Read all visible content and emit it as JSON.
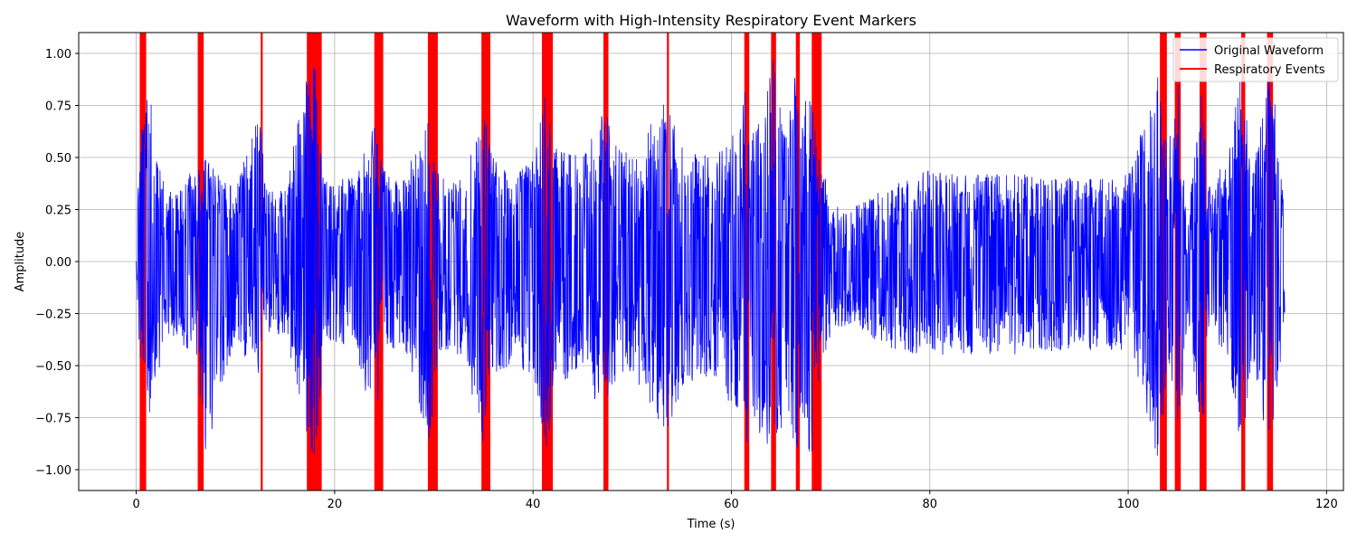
{
  "chart_data": {
    "type": "line",
    "title": "Waveform with High-Intensity Respiratory Event Markers",
    "xlabel": "Time (s)",
    "ylabel": "Amplitude",
    "xlim": [
      -5.8,
      121.7
    ],
    "ylim": [
      -1.1,
      1.1
    ],
    "xticks": [
      0,
      20,
      40,
      60,
      80,
      100,
      120
    ],
    "yticks": [
      -1.0,
      -0.75,
      -0.5,
      -0.25,
      0.0,
      0.25,
      0.5,
      0.75,
      1.0
    ],
    "x_tick_labels": [
      "0",
      "20",
      "40",
      "60",
      "80",
      "100",
      "120"
    ],
    "y_tick_labels": [
      "−1.00",
      "−0.75",
      "−0.50",
      "−0.25",
      "0.00",
      "0.25",
      "0.50",
      "0.75",
      "1.00"
    ],
    "grid": true,
    "legend_position": "top-right",
    "series": [
      {
        "name": "Original Waveform",
        "color": "#0000ff",
        "x_range": [
          0,
          115.8
        ],
        "envelope_x": [
          0,
          0.2,
          1,
          3,
          6,
          7,
          10,
          12.5,
          13,
          15,
          17,
          18,
          19,
          22,
          24,
          25,
          27,
          29.5,
          30.5,
          33,
          35,
          36,
          38,
          40,
          41.5,
          42,
          45,
          47.3,
          48,
          50,
          53.5,
          55,
          58,
          60,
          61.5,
          62,
          63,
          64.2,
          65.5,
          66.5,
          67,
          68,
          68.5,
          70,
          72,
          75,
          78,
          80,
          85,
          90,
          95,
          100,
          103,
          104,
          105,
          106,
          107.5,
          108,
          110,
          111.5,
          112.5,
          114,
          114.5,
          115.8
        ],
        "envelope_upper": [
          0.0,
          0.42,
          0.9,
          0.32,
          0.45,
          0.5,
          0.35,
          0.77,
          0.35,
          0.35,
          0.88,
          0.98,
          0.4,
          0.4,
          0.66,
          0.45,
          0.4,
          0.75,
          0.4,
          0.4,
          0.75,
          0.5,
          0.4,
          0.5,
          0.95,
          0.55,
          0.5,
          0.75,
          0.6,
          0.5,
          0.8,
          0.55,
          0.5,
          0.6,
          0.85,
          0.6,
          0.7,
          0.98,
          0.6,
          0.95,
          0.6,
          0.98,
          0.6,
          0.3,
          0.25,
          0.35,
          0.4,
          0.45,
          0.42,
          0.42,
          0.4,
          0.42,
          0.9,
          0.55,
          0.95,
          0.2,
          0.9,
          0.35,
          0.5,
          0.95,
          0.4,
          0.85,
          0.95,
          0.25
        ],
        "envelope_lower": [
          0.0,
          -0.35,
          -0.85,
          -0.35,
          -0.45,
          -0.95,
          -0.35,
          -0.65,
          -0.35,
          -0.35,
          -0.8,
          -0.98,
          -0.4,
          -0.4,
          -0.8,
          -0.45,
          -0.4,
          -0.9,
          -0.45,
          -0.45,
          -0.9,
          -0.55,
          -0.5,
          -0.55,
          -0.95,
          -0.6,
          -0.55,
          -0.8,
          -0.6,
          -0.55,
          -0.85,
          -0.6,
          -0.55,
          -0.7,
          -0.95,
          -0.7,
          -0.85,
          -0.98,
          -0.7,
          -0.98,
          -0.7,
          -0.98,
          -0.7,
          -0.35,
          -0.3,
          -0.4,
          -0.45,
          -0.45,
          -0.45,
          -0.45,
          -0.42,
          -0.45,
          -0.95,
          -0.55,
          -0.98,
          -0.25,
          -0.95,
          -0.35,
          -0.5,
          -0.95,
          -0.45,
          -0.9,
          -0.95,
          -0.25
        ]
      },
      {
        "name": "Respiratory Events",
        "color": "#ff0000",
        "event_intervals": [
          [
            0.35,
            1.0
          ],
          [
            6.2,
            6.8
          ],
          [
            12.55,
            12.75
          ],
          [
            17.2,
            18.7
          ],
          [
            24.0,
            24.9
          ],
          [
            29.4,
            30.4
          ],
          [
            34.8,
            35.7
          ],
          [
            40.9,
            42.0
          ],
          [
            47.1,
            47.6
          ],
          [
            53.5,
            53.7
          ],
          [
            61.3,
            61.8
          ],
          [
            64.0,
            64.5
          ],
          [
            66.5,
            66.9
          ],
          [
            68.1,
            69.1
          ],
          [
            103.2,
            103.9
          ],
          [
            104.7,
            105.3
          ],
          [
            107.2,
            107.9
          ],
          [
            111.4,
            111.8
          ],
          [
            114.0,
            114.6
          ]
        ]
      }
    ]
  }
}
